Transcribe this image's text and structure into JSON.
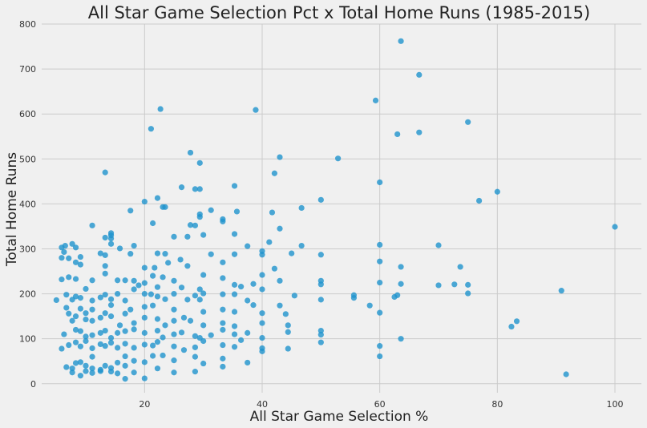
{
  "chart_data": {
    "type": "scatter",
    "title": "All Star Game Selection Pct x Total Home Runs (1985-2015)",
    "xlabel": "All Star Game Selection %",
    "ylabel": "Total Home Runs",
    "xlim": [
      2.5,
      104.5
    ],
    "ylim": [
      -20,
      800
    ],
    "xticks": [
      20,
      40,
      60,
      80,
      100
    ],
    "yticks": [
      0,
      100,
      200,
      300,
      400,
      500,
      600,
      700,
      800
    ],
    "grid": true,
    "legend": "none",
    "point_color": "#1f93cd",
    "background_color": "#f0f0f0",
    "points": [
      [
        63.6,
        762
      ],
      [
        66.7,
        687
      ],
      [
        59.3,
        630
      ],
      [
        22.7,
        611
      ],
      [
        38.9,
        609
      ],
      [
        75.0,
        582
      ],
      [
        21.1,
        567
      ],
      [
        66.7,
        559
      ],
      [
        63.0,
        555
      ],
      [
        27.8,
        514
      ],
      [
        43.0,
        504
      ],
      [
        52.9,
        501
      ],
      [
        29.4,
        491
      ],
      [
        13.3,
        470
      ],
      [
        42.1,
        468
      ],
      [
        60.0,
        448
      ],
      [
        35.3,
        440
      ],
      [
        26.3,
        437
      ],
      [
        28.6,
        433
      ],
      [
        29.4,
        433
      ],
      [
        80.0,
        427
      ],
      [
        22.2,
        413
      ],
      [
        50.0,
        409
      ],
      [
        20.0,
        405
      ],
      [
        76.9,
        407
      ],
      [
        23.1,
        393
      ],
      [
        23.5,
        393
      ],
      [
        46.7,
        391
      ],
      [
        31.3,
        386
      ],
      [
        17.6,
        385
      ],
      [
        35.7,
        383
      ],
      [
        41.7,
        381
      ],
      [
        29.4,
        377
      ],
      [
        29.4,
        371
      ],
      [
        33.3,
        366
      ],
      [
        21.4,
        357
      ],
      [
        33.3,
        361
      ],
      [
        11.1,
        352
      ],
      [
        27.8,
        353
      ],
      [
        28.6,
        352
      ],
      [
        100.0,
        349
      ],
      [
        43.0,
        345
      ],
      [
        14.3,
        335
      ],
      [
        35.3,
        333
      ],
      [
        14.3,
        330
      ],
      [
        13.3,
        325
      ],
      [
        30.0,
        331
      ],
      [
        41.2,
        315
      ],
      [
        25.0,
        327
      ],
      [
        14.3,
        323
      ],
      [
        27.3,
        327
      ],
      [
        5.9,
        303
      ],
      [
        6.5,
        307
      ],
      [
        8.3,
        303
      ],
      [
        7.7,
        311
      ],
      [
        14.3,
        311
      ],
      [
        15.8,
        301
      ],
      [
        18.2,
        307
      ],
      [
        37.5,
        306
      ],
      [
        46.7,
        307
      ],
      [
        60.0,
        309
      ],
      [
        70.0,
        308
      ],
      [
        6.3,
        293
      ],
      [
        5.9,
        280
      ],
      [
        7.1,
        279
      ],
      [
        9.1,
        282
      ],
      [
        12.5,
        290
      ],
      [
        13.3,
        286
      ],
      [
        17.6,
        289
      ],
      [
        22.2,
        290
      ],
      [
        23.5,
        289
      ],
      [
        31.3,
        288
      ],
      [
        35.3,
        288
      ],
      [
        40.0,
        287
      ],
      [
        40.0,
        295
      ],
      [
        50.0,
        287
      ],
      [
        45.0,
        290
      ],
      [
        60.0,
        272
      ],
      [
        26.1,
        276
      ],
      [
        8.3,
        270
      ],
      [
        9.1,
        265
      ],
      [
        13.3,
        262
      ],
      [
        20.0,
        258
      ],
      [
        21.7,
        258
      ],
      [
        24.0,
        269
      ],
      [
        27.3,
        262
      ],
      [
        33.3,
        270
      ],
      [
        42.1,
        256
      ],
      [
        73.7,
        260
      ],
      [
        63.6,
        260
      ],
      [
        5.9,
        232
      ],
      [
        7.1,
        237
      ],
      [
        8.3,
        233
      ],
      [
        11.1,
        230
      ],
      [
        13.3,
        245
      ],
      [
        15.4,
        230
      ],
      [
        18.2,
        229
      ],
      [
        19.0,
        219
      ],
      [
        21.4,
        240
      ],
      [
        23.1,
        237
      ],
      [
        25.0,
        229
      ],
      [
        30.0,
        242
      ],
      [
        33.3,
        235
      ],
      [
        35.3,
        220
      ],
      [
        38.5,
        222
      ],
      [
        40.0,
        242
      ],
      [
        43.0,
        229
      ],
      [
        50.0,
        229
      ],
      [
        50.0,
        221
      ],
      [
        60.0,
        225
      ],
      [
        63.6,
        222
      ],
      [
        70.0,
        219
      ],
      [
        72.7,
        221
      ],
      [
        75.0,
        220
      ],
      [
        16.7,
        230
      ],
      [
        29.4,
        210
      ],
      [
        22.2,
        215
      ],
      [
        20.0,
        224
      ],
      [
        5.0,
        186
      ],
      [
        6.7,
        198
      ],
      [
        7.7,
        187
      ],
      [
        8.3,
        194
      ],
      [
        9.1,
        191
      ],
      [
        10.0,
        211
      ],
      [
        11.1,
        185
      ],
      [
        12.5,
        192
      ],
      [
        13.3,
        198
      ],
      [
        14.3,
        188
      ],
      [
        15.4,
        200
      ],
      [
        16.7,
        185
      ],
      [
        18.2,
        210
      ],
      [
        20.0,
        200
      ],
      [
        21.1,
        199
      ],
      [
        22.2,
        194
      ],
      [
        23.5,
        188
      ],
      [
        25.0,
        200
      ],
      [
        26.3,
        214
      ],
      [
        27.3,
        187
      ],
      [
        28.6,
        196
      ],
      [
        29.4,
        187
      ],
      [
        30.0,
        201
      ],
      [
        33.3,
        199
      ],
      [
        35.3,
        199
      ],
      [
        36.4,
        216
      ],
      [
        37.5,
        185
      ],
      [
        38.5,
        175
      ],
      [
        40.0,
        210
      ],
      [
        43.0,
        174
      ],
      [
        45.5,
        196
      ],
      [
        50.0,
        187
      ],
      [
        55.6,
        197
      ],
      [
        55.6,
        191
      ],
      [
        58.3,
        174
      ],
      [
        62.5,
        193
      ],
      [
        63.0,
        197
      ],
      [
        75.0,
        201
      ],
      [
        90.9,
        207
      ],
      [
        6.7,
        169
      ],
      [
        7.1,
        156
      ],
      [
        9.1,
        167
      ],
      [
        10.0,
        157
      ],
      [
        11.1,
        165
      ],
      [
        13.3,
        157
      ],
      [
        14.3,
        175
      ],
      [
        16.7,
        156
      ],
      [
        17.6,
        165
      ],
      [
        20.0,
        171
      ],
      [
        21.4,
        174
      ],
      [
        25.0,
        165
      ],
      [
        30.0,
        160
      ],
      [
        33.3,
        165
      ],
      [
        35.3,
        160
      ],
      [
        40.0,
        157
      ],
      [
        44.0,
        155
      ],
      [
        60.0,
        158
      ],
      [
        7.7,
        140
      ],
      [
        8.3,
        150
      ],
      [
        10.0,
        143
      ],
      [
        11.1,
        140
      ],
      [
        12.5,
        147
      ],
      [
        14.3,
        150
      ],
      [
        15.8,
        130
      ],
      [
        18.2,
        135
      ],
      [
        20.0,
        147
      ],
      [
        22.2,
        144
      ],
      [
        23.5,
        130
      ],
      [
        25.0,
        140
      ],
      [
        26.7,
        147
      ],
      [
        27.8,
        140
      ],
      [
        30.0,
        130
      ],
      [
        33.3,
        135
      ],
      [
        35.3,
        128
      ],
      [
        40.0,
        135
      ],
      [
        44.4,
        130
      ],
      [
        82.4,
        127
      ],
      [
        83.3,
        139
      ],
      [
        6.3,
        110
      ],
      [
        8.3,
        120
      ],
      [
        9.1,
        117
      ],
      [
        10.0,
        105
      ],
      [
        11.1,
        108
      ],
      [
        12.5,
        113
      ],
      [
        13.3,
        118
      ],
      [
        14.3,
        102
      ],
      [
        15.4,
        113
      ],
      [
        16.7,
        117
      ],
      [
        18.2,
        121
      ],
      [
        20.0,
        113
      ],
      [
        22.2,
        118
      ],
      [
        23.1,
        103
      ],
      [
        25.0,
        110
      ],
      [
        26.3,
        114
      ],
      [
        28.6,
        106
      ],
      [
        29.4,
        102
      ],
      [
        31.3,
        108
      ],
      [
        33.3,
        120
      ],
      [
        35.3,
        110
      ],
      [
        36.4,
        97
      ],
      [
        37.5,
        113
      ],
      [
        40.0,
        102
      ],
      [
        44.4,
        115
      ],
      [
        50.0,
        118
      ],
      [
        50.0,
        109
      ],
      [
        63.6,
        100
      ],
      [
        5.9,
        78
      ],
      [
        7.1,
        86
      ],
      [
        8.3,
        92
      ],
      [
        9.1,
        83
      ],
      [
        10.0,
        95
      ],
      [
        11.1,
        79
      ],
      [
        12.5,
        88
      ],
      [
        13.3,
        84
      ],
      [
        14.3,
        91
      ],
      [
        15.4,
        80
      ],
      [
        16.7,
        89
      ],
      [
        18.2,
        80
      ],
      [
        20.0,
        87
      ],
      [
        21.4,
        85
      ],
      [
        22.2,
        93
      ],
      [
        25.0,
        83
      ],
      [
        26.7,
        75
      ],
      [
        28.6,
        81
      ],
      [
        30.0,
        95
      ],
      [
        33.3,
        86
      ],
      [
        35.3,
        82
      ],
      [
        40.0,
        72
      ],
      [
        40.0,
        79
      ],
      [
        44.4,
        78
      ],
      [
        50.0,
        92
      ],
      [
        60.0,
        84
      ],
      [
        6.7,
        37
      ],
      [
        7.7,
        34
      ],
      [
        8.3,
        46
      ],
      [
        9.1,
        48
      ],
      [
        10.0,
        40
      ],
      [
        11.1,
        34
      ],
      [
        12.5,
        31
      ],
      [
        13.3,
        40
      ],
      [
        14.3,
        35
      ],
      [
        15.4,
        47
      ],
      [
        16.7,
        40
      ],
      [
        18.2,
        51
      ],
      [
        20.0,
        48
      ],
      [
        21.4,
        62
      ],
      [
        22.2,
        34
      ],
      [
        23.1,
        63
      ],
      [
        25.0,
        52
      ],
      [
        28.6,
        60
      ],
      [
        30.0,
        45
      ],
      [
        33.3,
        38
      ],
      [
        33.3,
        56
      ],
      [
        37.5,
        47
      ],
      [
        60.0,
        61
      ],
      [
        16.7,
        61
      ],
      [
        11.1,
        60
      ],
      [
        7.7,
        25
      ],
      [
        9.1,
        18
      ],
      [
        10.0,
        28
      ],
      [
        11.1,
        24
      ],
      [
        12.5,
        28
      ],
      [
        14.3,
        27
      ],
      [
        15.4,
        23
      ],
      [
        16.7,
        11
      ],
      [
        18.2,
        25
      ],
      [
        20.0,
        12
      ],
      [
        25.0,
        25
      ],
      [
        28.6,
        27
      ],
      [
        91.7,
        21
      ]
    ]
  }
}
